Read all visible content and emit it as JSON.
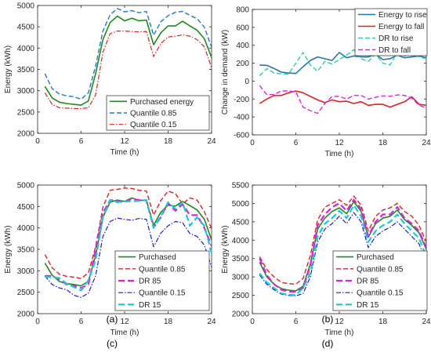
{
  "chart_data": [
    {
      "type": "line",
      "panel_label": "(a)",
      "xlabel": "Time (h)",
      "ylabel": "Energy (kWh)",
      "xlim": [
        0,
        24
      ],
      "ylim": [
        2000,
        5000
      ],
      "xticks": [
        0,
        6,
        12,
        18,
        24
      ],
      "yticks": [
        2000,
        2500,
        3000,
        3500,
        4000,
        4500,
        5000
      ],
      "grid": false,
      "legend_position": "bottom-right",
      "x": [
        1,
        2,
        3,
        4,
        5,
        6,
        7,
        8,
        9,
        10,
        11,
        12,
        13,
        14,
        15,
        16,
        17,
        18,
        19,
        20,
        21,
        22,
        23,
        24
      ],
      "series": [
        {
          "name": "Purchased energy",
          "color": "#1a8c1a",
          "dash": "solid",
          "values": [
            3100,
            2830,
            2730,
            2700,
            2680,
            2660,
            2760,
            3400,
            4200,
            4600,
            4750,
            4640,
            4700,
            4640,
            4660,
            4080,
            4360,
            4520,
            4520,
            4630,
            4520,
            4420,
            4220,
            3780
          ]
        },
        {
          "name": "Quantile 0.85",
          "color": "#1f77d4",
          "dash": "dash",
          "values": [
            3400,
            3050,
            2920,
            2880,
            2860,
            2800,
            2950,
            3580,
            4400,
            4780,
            4930,
            4850,
            4880,
            4830,
            4860,
            4300,
            4620,
            4760,
            4840,
            4860,
            4770,
            4690,
            4490,
            4020
          ]
        },
        {
          "name": "Quantile 0.15",
          "color": "#e02020",
          "dash": "dashdot",
          "values": [
            2950,
            2680,
            2600,
            2590,
            2580,
            2580,
            2600,
            2900,
            3900,
            4340,
            4400,
            4400,
            4390,
            4380,
            4390,
            3800,
            4110,
            4260,
            4280,
            4310,
            4280,
            4200,
            4030,
            3540
          ]
        }
      ]
    },
    {
      "type": "line",
      "panel_label": "(b)",
      "xlabel": "Time (h)",
      "ylabel": "Change in demand (kW)",
      "xlim": [
        0,
        24
      ],
      "ylim": [
        -600,
        800
      ],
      "xticks": [
        0,
        6,
        12,
        18,
        24
      ],
      "yticks": [
        -600,
        -400,
        -200,
        0,
        200,
        400,
        600,
        800
      ],
      "grid": false,
      "legend_position": "top-right",
      "x": [
        1,
        2,
        3,
        4,
        5,
        6,
        7,
        8,
        9,
        10,
        11,
        12,
        13,
        14,
        15,
        16,
        17,
        18,
        19,
        20,
        21,
        22,
        23,
        24
      ],
      "series": [
        {
          "name": "Energy to rise",
          "color": "#1f77b4",
          "dash": "solid",
          "values": [
            180,
            175,
            140,
            100,
            90,
            85,
            160,
            230,
            270,
            250,
            230,
            320,
            260,
            280,
            270,
            270,
            300,
            240,
            250,
            290,
            260,
            270,
            280,
            260
          ]
        },
        {
          "name": "Energy to fall",
          "color": "#e02020",
          "dash": "solid",
          "values": [
            -250,
            -200,
            -160,
            -160,
            -130,
            -110,
            -130,
            -170,
            -210,
            -240,
            -210,
            -230,
            -225,
            -250,
            -230,
            -270,
            -260,
            -260,
            -290,
            -260,
            -230,
            -175,
            -260,
            -270
          ]
        },
        {
          "name": "DR to rise",
          "color": "#2ecfa0",
          "dash": "dash",
          "values": [
            60,
            140,
            90,
            80,
            80,
            200,
            320,
            180,
            110,
            220,
            190,
            240,
            290,
            350,
            250,
            220,
            300,
            200,
            180,
            320,
            280,
            300,
            270,
            250
          ]
        },
        {
          "name": "DR to fall",
          "color": "#e020e0",
          "dash": "dash",
          "values": [
            -50,
            -150,
            -150,
            -110,
            -110,
            -120,
            -290,
            -330,
            -360,
            -250,
            -170,
            -170,
            -200,
            -160,
            -160,
            -200,
            -180,
            -165,
            -170,
            -155,
            -160,
            -190,
            -270,
            -300
          ]
        }
      ]
    },
    {
      "type": "line",
      "panel_label": "(c)",
      "xlabel": "Time (h)",
      "ylabel": "Energy (kWh)",
      "xlim": [
        0,
        24
      ],
      "ylim": [
        2000,
        5000
      ],
      "xticks": [
        0,
        6,
        12,
        18,
        24
      ],
      "yticks": [
        2000,
        2500,
        3000,
        3500,
        4000,
        4500,
        5000
      ],
      "grid": false,
      "legend_position": "bottom-right",
      "x": [
        1,
        2,
        3,
        4,
        5,
        6,
        7,
        8,
        9,
        10,
        11,
        12,
        13,
        14,
        15,
        16,
        17,
        18,
        19,
        20,
        21,
        22,
        23,
        24
      ],
      "series": [
        {
          "name": "Purchased",
          "color": "#1a8c1a",
          "dash": "solid",
          "values": [
            3180,
            2900,
            2750,
            2700,
            2680,
            2650,
            2760,
            3350,
            4250,
            4600,
            4650,
            4620,
            4700,
            4640,
            4650,
            4060,
            4370,
            4530,
            4510,
            4620,
            4520,
            4420,
            4200,
            3720
          ]
        },
        {
          "name": "Quantile 0.85",
          "color": "#e02020",
          "dash": "dash",
          "values": [
            3380,
            3070,
            2920,
            2870,
            2850,
            2820,
            2950,
            3560,
            4480,
            4880,
            4900,
            4930,
            4920,
            4880,
            4860,
            4300,
            4640,
            4860,
            4800,
            4560,
            4700,
            4650,
            4380,
            3980
          ]
        },
        {
          "name": "DR 85",
          "color": "#e020e0",
          "dash": "dashbig",
          "values": [
            2880,
            2880,
            2800,
            2680,
            2650,
            2600,
            2680,
            3500,
            4350,
            4650,
            4630,
            4600,
            4680,
            4650,
            4640,
            4010,
            4250,
            4580,
            4400,
            4550,
            4300,
            4300,
            4000,
            3580
          ]
        },
        {
          "name": "Quantile 0.15",
          "color": "#1a1adc",
          "dash": "dashdot",
          "values": [
            2880,
            2680,
            2600,
            2560,
            2430,
            2380,
            2480,
            2880,
            3800,
            4150,
            4230,
            4200,
            4180,
            4220,
            4200,
            3560,
            3880,
            4050,
            4150,
            4120,
            3870,
            3800,
            3600,
            3080
          ]
        },
        {
          "name": "DR 15",
          "color": "#1ac8dc",
          "dash": "dashbig",
          "values": [
            2860,
            2850,
            2830,
            2700,
            2620,
            2540,
            2780,
            3250,
            4250,
            4650,
            4600,
            4620,
            4620,
            4630,
            4650,
            4000,
            4280,
            4600,
            4450,
            4600,
            4050,
            4250,
            4050,
            3420
          ]
        }
      ]
    },
    {
      "type": "line",
      "panel_label": "(d)",
      "xlabel": "Time (h)",
      "ylabel": "Energy (kWh)",
      "xlim": [
        0,
        24
      ],
      "ylim": [
        2000,
        5500
      ],
      "xticks": [
        0,
        6,
        12,
        18,
        24
      ],
      "yticks": [
        2000,
        2500,
        3000,
        3500,
        4000,
        4500,
        5000,
        5500
      ],
      "grid": false,
      "legend_position": "bottom-right",
      "x": [
        1,
        2,
        3,
        4,
        5,
        6,
        7,
        8,
        9,
        10,
        11,
        12,
        13,
        14,
        15,
        16,
        17,
        18,
        19,
        20,
        21,
        22,
        23,
        24
      ],
      "series": [
        {
          "name": "Purchased",
          "color": "#1a8c1a",
          "dash": "solid",
          "values": [
            3400,
            3000,
            2800,
            2680,
            2640,
            2620,
            2750,
            3350,
            4300,
            4600,
            4780,
            4880,
            4720,
            5050,
            4780,
            4080,
            4450,
            4600,
            4650,
            4820,
            4560,
            4400,
            4200,
            3750
          ]
        },
        {
          "name": "Quantile 0.85",
          "color": "#e02020",
          "dash": "dash",
          "values": [
            3550,
            3200,
            3000,
            2850,
            2820,
            2800,
            2960,
            3580,
            4550,
            4900,
            5000,
            5100,
            4950,
            5200,
            4950,
            4250,
            4650,
            4820,
            4880,
            5000,
            4780,
            4650,
            4400,
            3950
          ]
        },
        {
          "name": "DR 85",
          "color": "#e020e0",
          "dash": "dashbig",
          "values": [
            3500,
            3050,
            2800,
            2650,
            2600,
            2600,
            2700,
            3300,
            4400,
            4700,
            4900,
            5000,
            4800,
            5100,
            4850,
            4100,
            4500,
            4700,
            4700,
            4900,
            4600,
            4450,
            4250,
            3800
          ]
        },
        {
          "name": "Quantile 0.15",
          "color": "#1a1adc",
          "dash": "dashdot",
          "values": [
            3050,
            2800,
            2650,
            2530,
            2500,
            2480,
            2550,
            3000,
            3950,
            4300,
            4450,
            4650,
            4450,
            4750,
            4500,
            3800,
            4100,
            4250,
            4350,
            4500,
            4300,
            4100,
            3900,
            3400
          ]
        },
        {
          "name": "DR 15",
          "color": "#1ac8dc",
          "dash": "dashbig",
          "values": [
            3100,
            2850,
            2700,
            2550,
            2520,
            2500,
            2700,
            3100,
            4100,
            4450,
            4600,
            4800,
            4600,
            4950,
            4650,
            3950,
            4250,
            4400,
            4500,
            4700,
            4450,
            4250,
            4050,
            3550
          ]
        }
      ]
    }
  ]
}
